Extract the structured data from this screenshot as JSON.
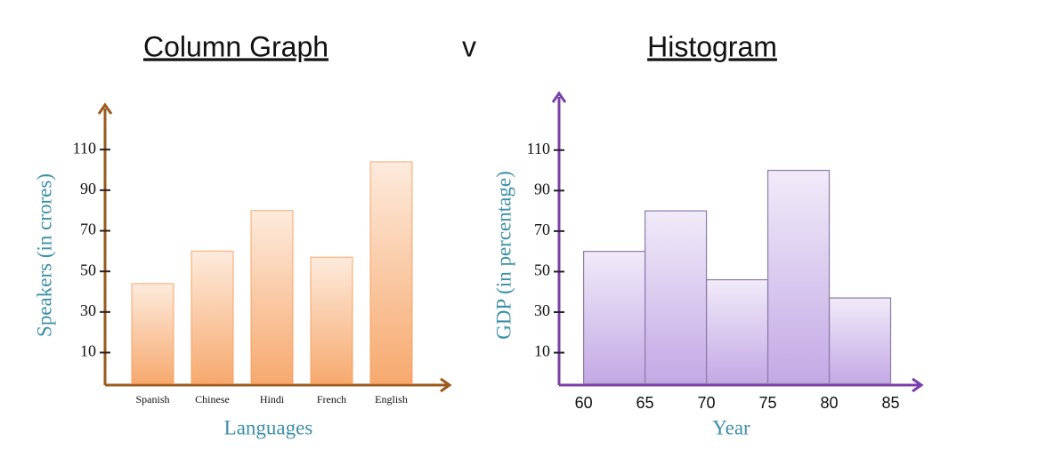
{
  "separator": "v",
  "chart_data": [
    {
      "type": "bar",
      "title": "Column Graph",
      "categories": [
        "Spanish",
        "Chinese",
        "Hindi",
        "French",
        "English"
      ],
      "values": [
        44,
        60,
        80,
        57,
        104
      ],
      "color": "#f59a55",
      "axis_color": "#9b5a1e",
      "label_color": "#3a8fa8",
      "xlabel": "Languages",
      "ylabel": "Speakers (in crores)",
      "ylim": [
        -6,
        132
      ],
      "yticks": [
        10,
        30,
        50,
        70,
        90,
        110
      ]
    },
    {
      "type": "histogram",
      "title": "Histogram",
      "bins": [
        60,
        65,
        70,
        75,
        80,
        85
      ],
      "values": [
        60,
        80,
        46,
        100,
        37
      ],
      "color": "#b89ae0",
      "axis_color": "#7b3fa8",
      "label_color": "#3a8fa8",
      "xlabel": "Year",
      "ylabel": "GDP (in percentage)",
      "xlim": [
        58,
        87.5
      ],
      "xticks": [
        60,
        65,
        70,
        75,
        80,
        85
      ],
      "ylim": [
        -6,
        138
      ],
      "yticks": [
        10,
        30,
        50,
        70,
        90,
        110
      ]
    }
  ]
}
